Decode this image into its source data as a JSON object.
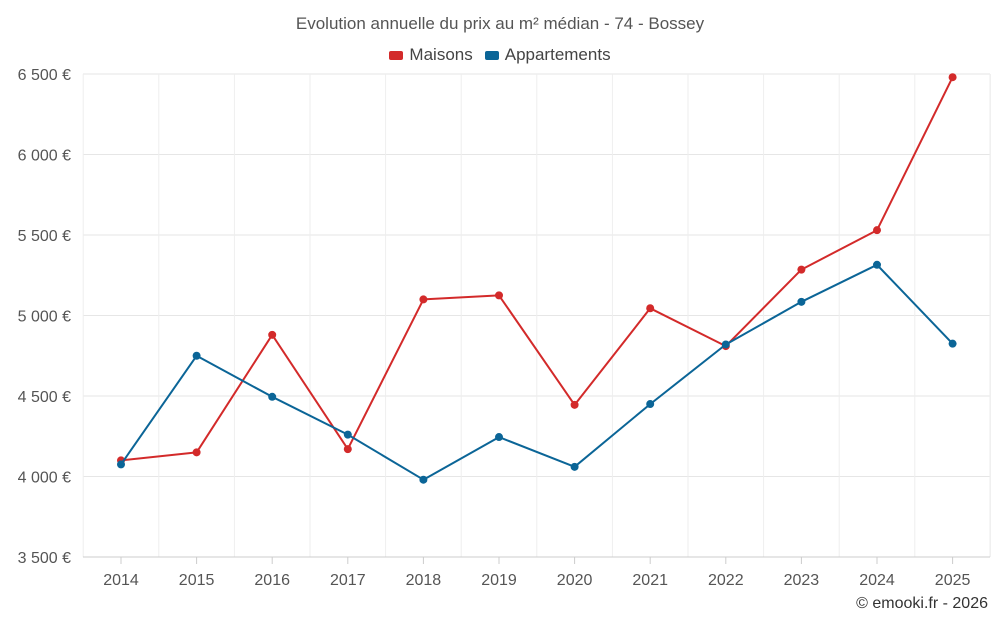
{
  "chart_data": {
    "type": "line",
    "title": "Evolution annuelle du prix au m² médian - 74 - Bossey",
    "categories": [
      "2014",
      "2015",
      "2016",
      "2017",
      "2018",
      "2019",
      "2020",
      "2021",
      "2022",
      "2023",
      "2024",
      "2025"
    ],
    "series": [
      {
        "name": "Maisons",
        "color": "#d32a2a",
        "values": [
          4100,
          4150,
          4880,
          4170,
          5100,
          5125,
          4445,
          5045,
          4810,
          5285,
          5530,
          6480
        ]
      },
      {
        "name": "Appartements",
        "color": "#0b6597",
        "values": [
          4075,
          4750,
          4495,
          4260,
          3980,
          4245,
          4060,
          4450,
          4820,
          5085,
          5315,
          4825
        ]
      }
    ],
    "y_ticks": [
      "3 500 €",
      "4 000 €",
      "4 500 €",
      "5 000 €",
      "5 500 €",
      "6 000 €",
      "6 500 €"
    ],
    "ylim": [
      3500,
      6500
    ],
    "grid": true,
    "legend_position": "top-center",
    "xlabel": "",
    "ylabel": ""
  },
  "footer": {
    "copyright": "© emooki.fr - 2026"
  }
}
